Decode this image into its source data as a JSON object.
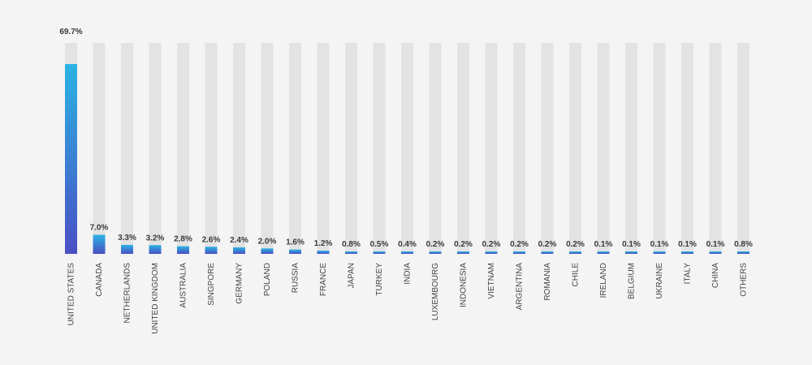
{
  "colors": {
    "background": "#f4f4f4",
    "track": "#e3e3e3",
    "bar_top": "#2bb3e3",
    "bar_bottom": "#4a4fc4"
  },
  "chart_data": {
    "type": "bar",
    "categories": [
      "UNITED STATES",
      "CANADA",
      "NETHERLANDS",
      "UNITED KINGDOM",
      "AUSTRALIA",
      "SINGPORE",
      "GERMANY",
      "POLAND",
      "RUSSIA",
      "FRANCE",
      "JAPAN",
      "TURKEY",
      "INDIA",
      "LUXEMBOURG",
      "INDONESIA",
      "VIETNAM",
      "ARGENTINA",
      "ROMANIA",
      "CHILE",
      "IRELAND",
      "BELGIUM",
      "UKRAINE",
      "ITALY",
      "CHINA",
      "OTHERS"
    ],
    "values": [
      69.7,
      7.0,
      3.3,
      3.2,
      2.8,
      2.6,
      2.4,
      2.0,
      1.6,
      1.2,
      0.8,
      0.5,
      0.4,
      0.2,
      0.2,
      0.2,
      0.2,
      0.2,
      0.2,
      0.1,
      0.1,
      0.1,
      0.1,
      0.1,
      0.8
    ],
    "labels": [
      "69.7%",
      "7.0%",
      "3.3%",
      "3.2%",
      "2.8%",
      "2.6%",
      "2.4%",
      "2.0%",
      "1.6%",
      "1.2%",
      "0.8%",
      "0.5%",
      "0.4%",
      "0.2%",
      "0.2%",
      "0.2%",
      "0.2%",
      "0.2%",
      "0.2%",
      "0.1%",
      "0.1%",
      "0.1%",
      "0.1%",
      "0.1%",
      "0.8%"
    ],
    "ylim": [
      0,
      69.7
    ],
    "grid": false,
    "legend": "none"
  }
}
